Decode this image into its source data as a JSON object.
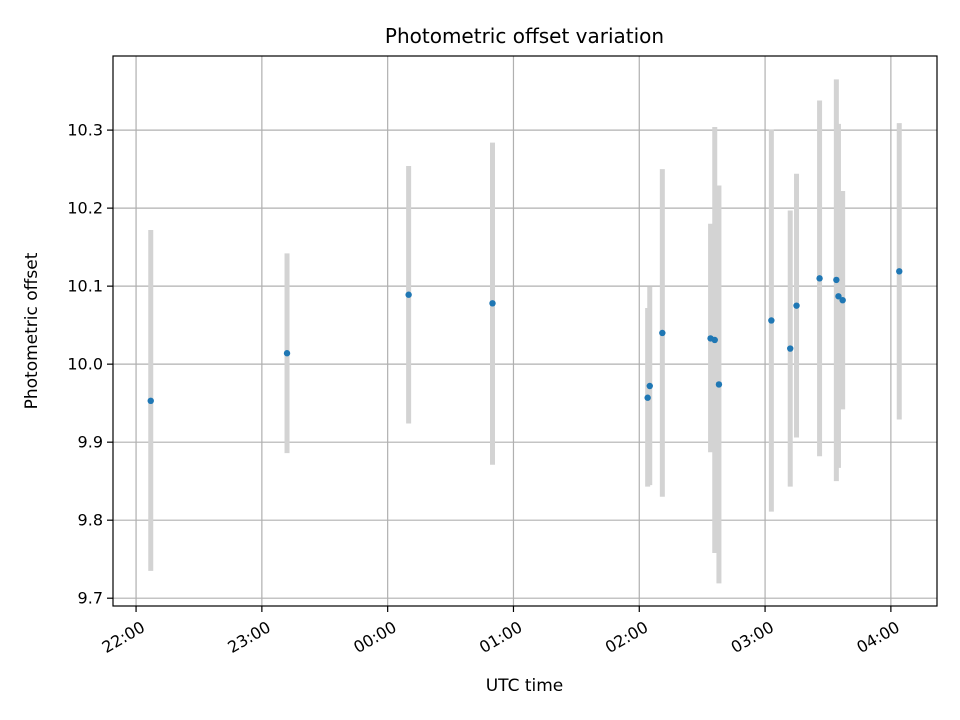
{
  "chart_data": {
    "type": "scatter",
    "title": "Photometric offset variation",
    "xlabel": "UTC time",
    "ylabel": "Photometric offset",
    "x_unit": "UTC time (HH:MM, night spanning midnight)",
    "xlim": [
      "21:49",
      "04:22"
    ],
    "ylim": [
      9.69,
      10.395
    ],
    "x_ticks": [
      "22:00",
      "23:00",
      "00:00",
      "01:00",
      "02:00",
      "03:00",
      "04:00"
    ],
    "y_ticks": [
      9.7,
      9.8,
      9.9,
      10.0,
      10.1,
      10.2,
      10.3
    ],
    "grid": true,
    "legend": "none",
    "colors": {
      "point": "#1f77b4",
      "errorbar": "#d3d3d3",
      "grid": "#b0b0b0"
    },
    "points": [
      {
        "x": "22:07",
        "y": 9.953,
        "ylow": 9.735,
        "yhigh": 10.172
      },
      {
        "x": "23:12",
        "y": 10.014,
        "ylow": 9.886,
        "yhigh": 10.142
      },
      {
        "x": "00:10",
        "y": 10.089,
        "ylow": 9.924,
        "yhigh": 10.254
      },
      {
        "x": "00:50",
        "y": 10.078,
        "ylow": 9.871,
        "yhigh": 10.284
      },
      {
        "x": "02:04",
        "y": 9.957,
        "ylow": 9.843,
        "yhigh": 10.072
      },
      {
        "x": "02:05",
        "y": 9.972,
        "ylow": 9.845,
        "yhigh": 10.099
      },
      {
        "x": "02:11",
        "y": 10.04,
        "ylow": 9.83,
        "yhigh": 10.25
      },
      {
        "x": "02:34",
        "y": 10.033,
        "ylow": 9.887,
        "yhigh": 10.18
      },
      {
        "x": "02:36",
        "y": 10.031,
        "ylow": 9.758,
        "yhigh": 10.304
      },
      {
        "x": "02:38",
        "y": 9.974,
        "ylow": 9.719,
        "yhigh": 10.229
      },
      {
        "x": "03:03",
        "y": 10.056,
        "ylow": 9.811,
        "yhigh": 10.301
      },
      {
        "x": "03:12",
        "y": 10.02,
        "ylow": 9.843,
        "yhigh": 10.197
      },
      {
        "x": "03:15",
        "y": 10.075,
        "ylow": 9.906,
        "yhigh": 10.244
      },
      {
        "x": "03:26",
        "y": 10.11,
        "ylow": 9.882,
        "yhigh": 10.338
      },
      {
        "x": "03:34",
        "y": 10.108,
        "ylow": 9.85,
        "yhigh": 10.365
      },
      {
        "x": "03:35",
        "y": 10.087,
        "ylow": 9.867,
        "yhigh": 10.308
      },
      {
        "x": "03:37",
        "y": 10.082,
        "ylow": 9.942,
        "yhigh": 10.222
      },
      {
        "x": "04:04",
        "y": 10.119,
        "ylow": 9.929,
        "yhigh": 10.309
      }
    ]
  }
}
